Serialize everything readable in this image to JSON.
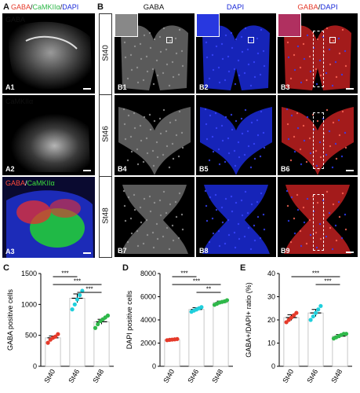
{
  "panel_letters": {
    "A": "A",
    "B": "B",
    "C": "C",
    "D": "D",
    "E": "E"
  },
  "panelA": {
    "header": {
      "part1": "GABA",
      "sep1": "/",
      "part2": "CaMKIIα",
      "sep2": "/",
      "part3": "DAPI"
    },
    "tiles": [
      {
        "label": "A1",
        "channel": "GABA",
        "channel_color": "#ff4a3a"
      },
      {
        "label": "A2",
        "channel": "CaMKIIα",
        "channel_color": "#3ddc3d"
      },
      {
        "label": "A3",
        "channel_a": "GABA",
        "channel_sep": "/",
        "channel_b": "CaMKIIα"
      }
    ]
  },
  "panelB": {
    "col_headers": {
      "c1": "GABA",
      "c2": "DAPI",
      "c3_a": "GABA",
      "c3_sep": "/",
      "c3_b": "DAPI"
    },
    "stages": [
      "St40",
      "St46",
      "St48"
    ],
    "tiles": [
      "B1",
      "B2",
      "B3",
      "B4",
      "B5",
      "B6",
      "B7",
      "B8",
      "B9"
    ]
  },
  "colors": {
    "red": "#e53a2a",
    "cyan": "#1fcfdc",
    "green": "#2fb84a",
    "dapi": "#1a2ad8",
    "gaba": "#ff2a2a"
  },
  "chart_data": [
    {
      "type": "bar",
      "ylabel": "GABA positive cells",
      "categories": [
        "St40",
        "St46",
        "St48"
      ],
      "values": [
        460,
        1100,
        720
      ],
      "errors": [
        30,
        70,
        40
      ],
      "points": [
        [
          380,
          430,
          460,
          480,
          520
        ],
        [
          920,
          1000,
          1080,
          1150,
          1220
        ],
        [
          620,
          680,
          730,
          760,
          790,
          820
        ]
      ],
      "yticks": [
        0,
        500,
        1000,
        1500
      ],
      "ylim": [
        0,
        1500
      ],
      "significance": [
        {
          "from": 0,
          "to": 1,
          "label": "***"
        },
        {
          "from": 0,
          "to": 2,
          "label": "***"
        },
        {
          "from": 1,
          "to": 2,
          "label": "***"
        }
      ]
    },
    {
      "type": "bar",
      "ylabel": "DAPI positive cells",
      "categories": [
        "St40",
        "St46",
        "St48"
      ],
      "values": [
        2300,
        4900,
        5500
      ],
      "errors": [
        50,
        150,
        120
      ],
      "points": [
        [
          2250,
          2280,
          2300,
          2320,
          2350
        ],
        [
          4700,
          4800,
          4900,
          5000,
          5100
        ],
        [
          5300,
          5400,
          5500,
          5550,
          5600,
          5700
        ]
      ],
      "yticks": [
        0,
        2000,
        4000,
        6000,
        8000
      ],
      "ylim": [
        0,
        8000
      ],
      "significance": [
        {
          "from": 0,
          "to": 1,
          "label": "***"
        },
        {
          "from": 0,
          "to": 2,
          "label": "***"
        },
        {
          "from": 1,
          "to": 2,
          "label": "**"
        }
      ]
    },
    {
      "type": "bar",
      "ylabel": "GABA+/DAPI+ ratio (%)",
      "categories": [
        "St40",
        "St46",
        "St48"
      ],
      "values": [
        21,
        23,
        13
      ],
      "errors": [
        1.2,
        1.5,
        0.7
      ],
      "points": [
        [
          19,
          20,
          21,
          22,
          23
        ],
        [
          20,
          21.5,
          23,
          24.5,
          26
        ],
        [
          12,
          12.5,
          13,
          13.5,
          14,
          14
        ]
      ],
      "yticks": [
        0,
        10,
        20,
        30,
        40
      ],
      "ylim": [
        0,
        40
      ],
      "significance": [
        {
          "from": 0,
          "to": 2,
          "label": "***"
        },
        {
          "from": 1,
          "to": 2,
          "label": "***"
        }
      ]
    }
  ]
}
